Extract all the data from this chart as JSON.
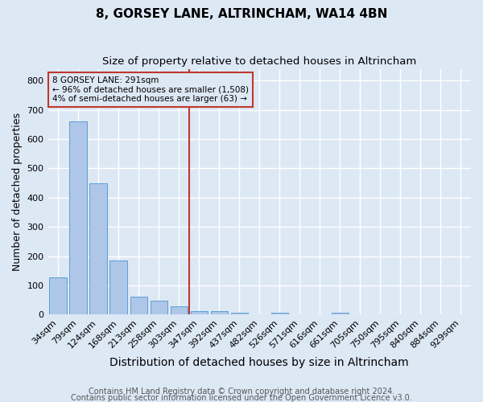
{
  "title": "8, GORSEY LANE, ALTRINCHAM, WA14 4BN",
  "subtitle": "Size of property relative to detached houses in Altrincham",
  "xlabel": "Distribution of detached houses by size in Altrincham",
  "ylabel": "Number of detached properties",
  "categories": [
    "34sqm",
    "79sqm",
    "124sqm",
    "168sqm",
    "213sqm",
    "258sqm",
    "303sqm",
    "347sqm",
    "392sqm",
    "437sqm",
    "482sqm",
    "526sqm",
    "571sqm",
    "616sqm",
    "661sqm",
    "705sqm",
    "750sqm",
    "795sqm",
    "840sqm",
    "884sqm",
    "929sqm"
  ],
  "values": [
    128,
    660,
    450,
    185,
    62,
    48,
    27,
    12,
    12,
    7,
    0,
    7,
    0,
    0,
    7,
    0,
    0,
    0,
    0,
    0,
    0
  ],
  "bar_color": "#aec6e8",
  "bar_edge_color": "#5a9fd4",
  "ylim": [
    0,
    840
  ],
  "yticks": [
    0,
    100,
    200,
    300,
    400,
    500,
    600,
    700,
    800
  ],
  "vline_x": 6.5,
  "vline_color": "#c0392b",
  "annotation_text": "8 GORSEY LANE: 291sqm\n← 96% of detached houses are smaller (1,508)\n4% of semi-detached houses are larger (63) →",
  "annotation_box_color": "#c0392b",
  "footer1": "Contains HM Land Registry data © Crown copyright and database right 2024.",
  "footer2": "Contains public sector information licensed under the Open Government Licence v3.0.",
  "bg_color": "#dde8f5",
  "grid_color": "#ffffff",
  "title_fontsize": 11,
  "subtitle_fontsize": 9.5,
  "xlabel_fontsize": 10,
  "ylabel_fontsize": 9,
  "tick_fontsize": 8,
  "footer_fontsize": 7
}
